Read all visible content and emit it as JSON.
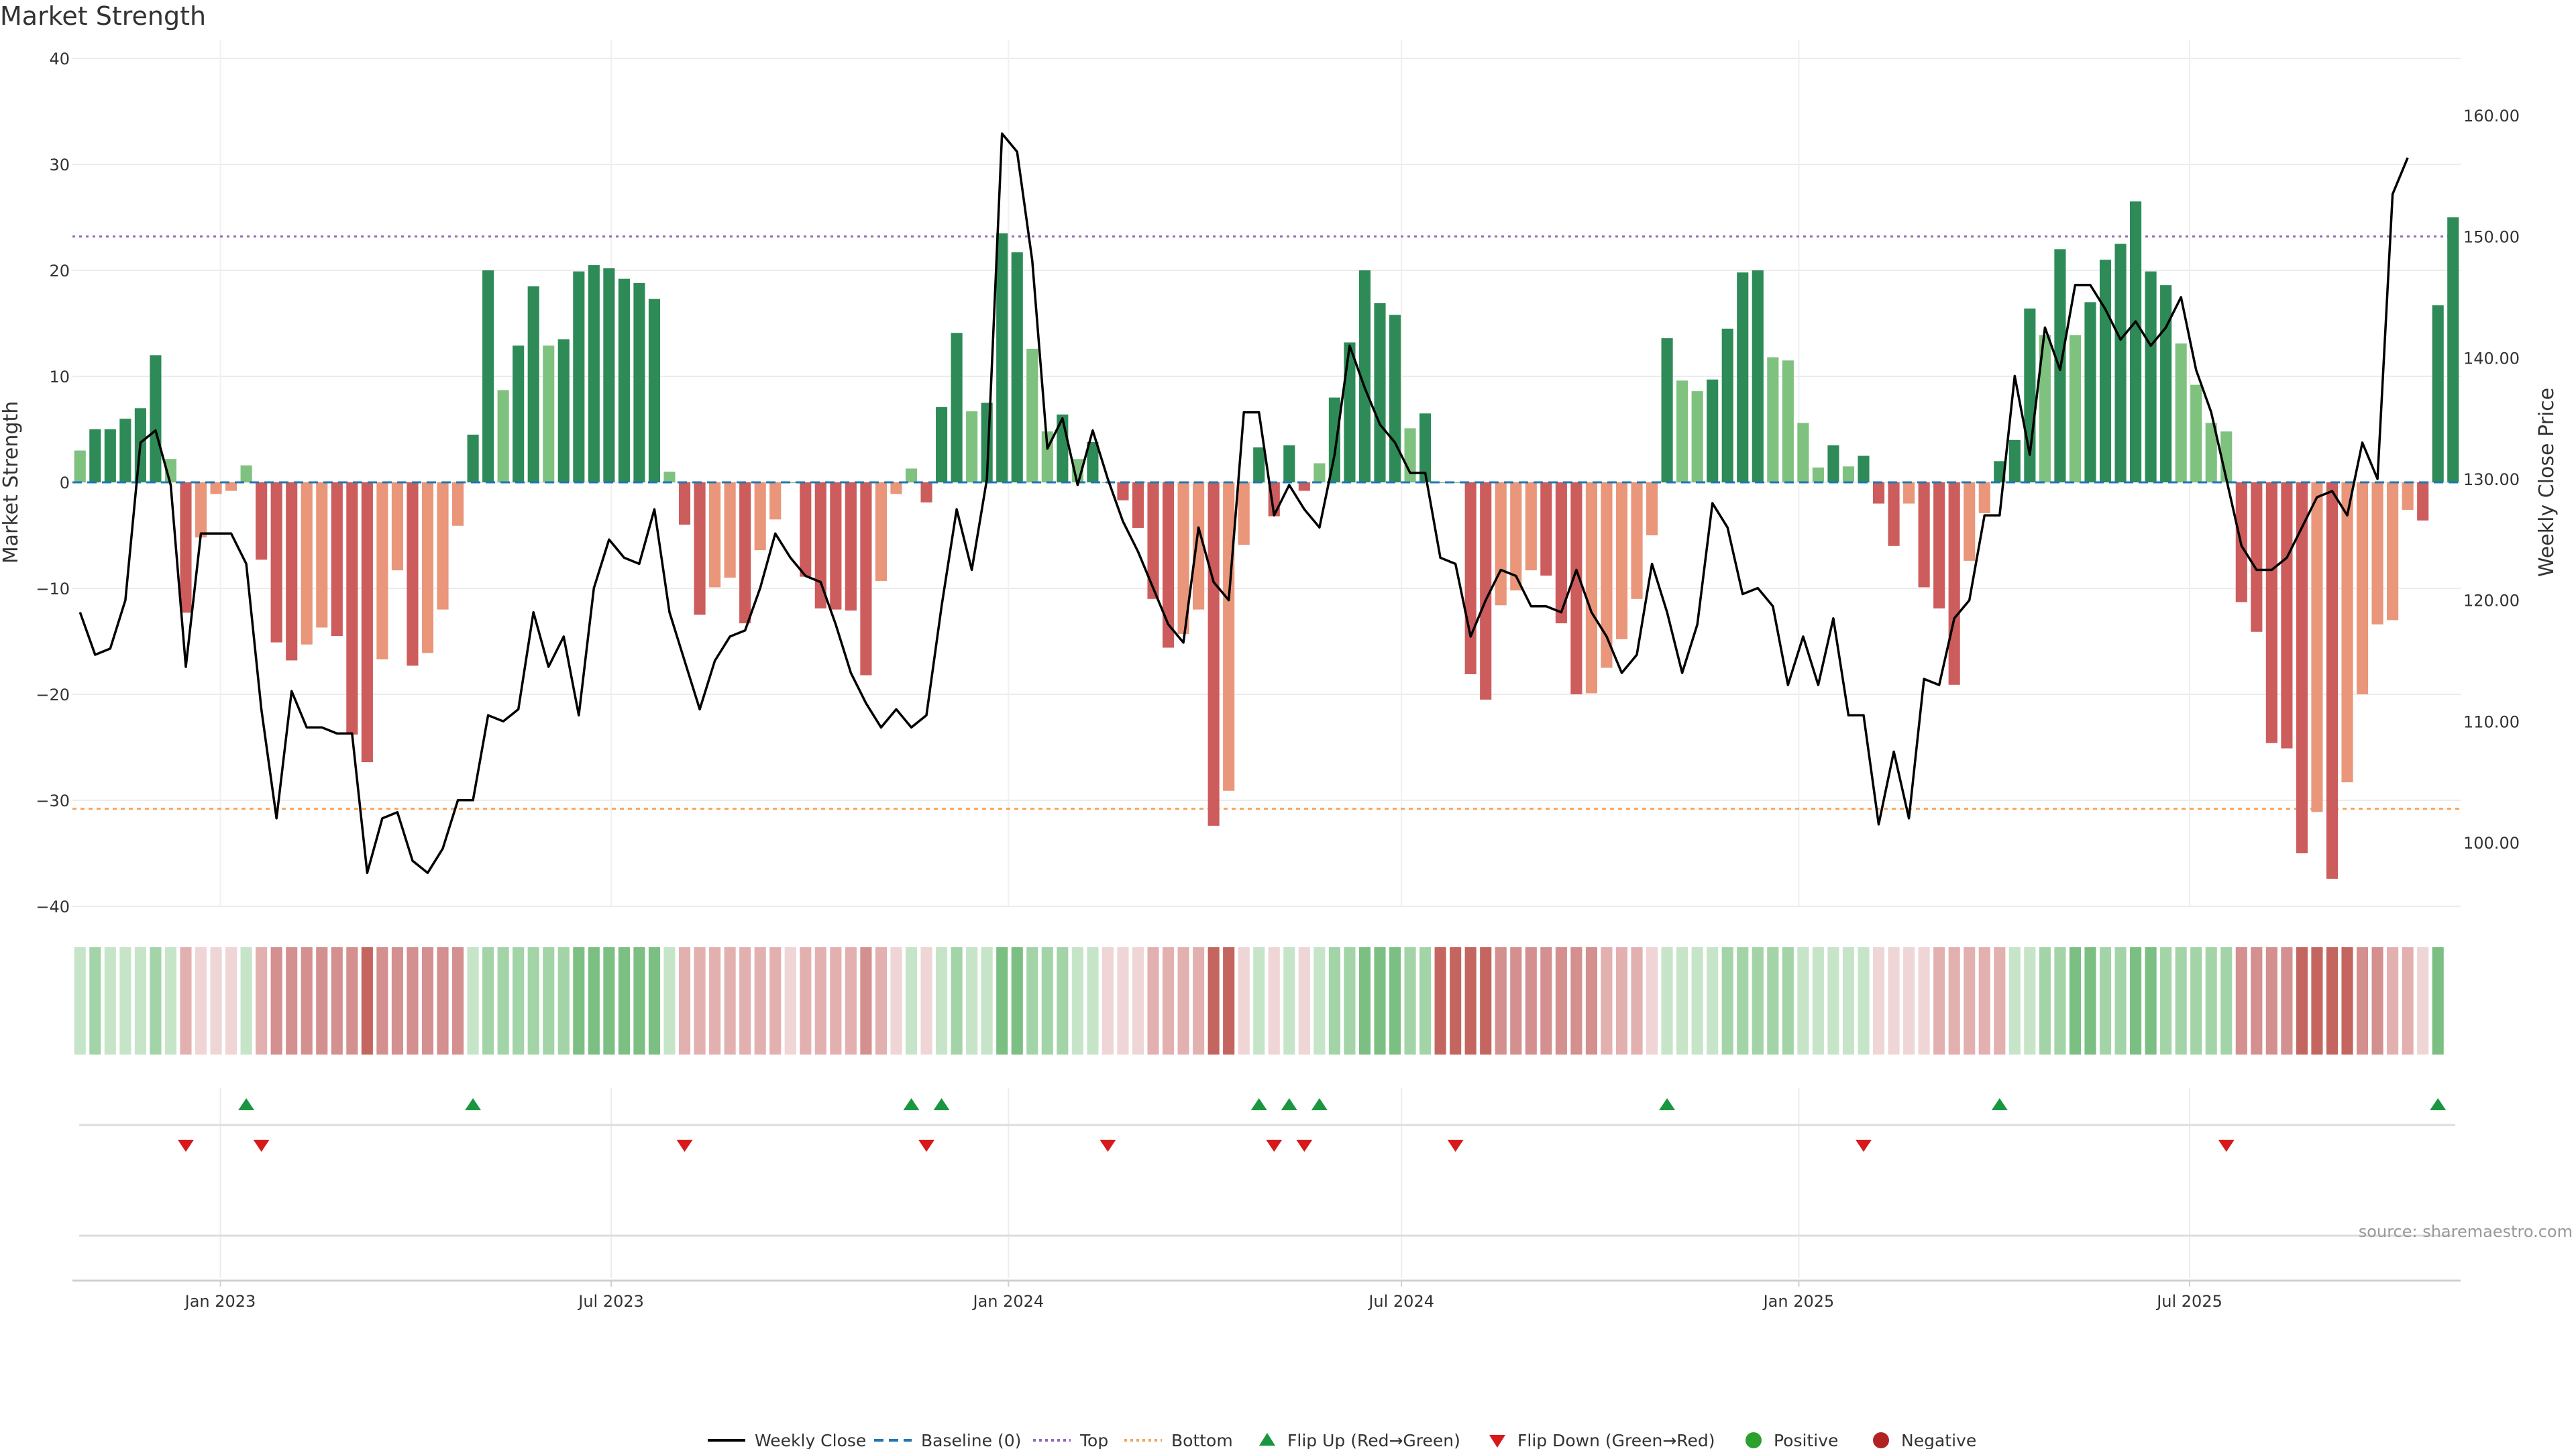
{
  "title": "Market Strength",
  "source": "source: sharemaestro.com",
  "colors": {
    "strong_pos": "#2e8b57",
    "weak_pos": "#7fc17f",
    "strong_neg": "#cd5c5c",
    "weak_neg": "#e9967a",
    "neutral": "#c2c2c2",
    "price": "#000000",
    "baseline": "#1f77b4",
    "top": "#9467bd",
    "bottom": "#f4a460",
    "flip_up": "#1a9641",
    "flip_down": "#d7191c",
    "positive": "#2ca02c",
    "negative": "#b22222"
  },
  "chart_data": {
    "type": "bar",
    "title": "Market Strength",
    "ylabel": "Market Strength",
    "y2label": "Weekly Close Price",
    "ylim": [
      -42,
      40
    ],
    "y2lim": [
      93.3,
      162.9
    ],
    "yticks": [
      40,
      30,
      20,
      10,
      0,
      -10,
      -20,
      -30,
      -40
    ],
    "y2ticks": [
      "160.00",
      "150.00",
      "140.00",
      "130.00",
      "120.00",
      "110.00",
      "100.00"
    ],
    "xticks": [
      "Jan 2023",
      "Jul 2023",
      "Jan 2024",
      "Jul 2024",
      "Jan 2025",
      "Jul 2025"
    ],
    "start_date": "2022-10-28",
    "top_level": 23.2,
    "bottom_level": -30.8,
    "bars": [
      3,
      5,
      5,
      6,
      7,
      12,
      2.2,
      -12.3,
      -5.2,
      -1.1,
      -0.8,
      1.6,
      -7.3,
      -15.1,
      -16.8,
      -15.3,
      -13.7,
      -14.5,
      -23.8,
      -26.4,
      -16.7,
      -8.3,
      -17.3,
      -16.1,
      -12.0,
      -4.1,
      4.5,
      20,
      8.7,
      12.9,
      18.5,
      12.9,
      13.5,
      19.9,
      20.5,
      20.2,
      19.2,
      18.8,
      17.3,
      1.0,
      -4.0,
      -12.5,
      -9.9,
      -9.0,
      -13.3,
      -6.4,
      -3.5,
      0,
      -8.9,
      -11.9,
      -12.0,
      -12.1,
      -18.2,
      -9.3,
      -1.1,
      1.3,
      -1.9,
      7.1,
      14.1,
      6.7,
      7.5,
      23.5,
      21.7,
      12.6,
      4.8,
      6.4,
      2.2,
      3.8,
      0,
      -1.7,
      -4.3,
      -11.0,
      -15.6,
      -14.3,
      -12.0,
      -32.4,
      -29.1,
      -5.9,
      3.3,
      -3.2,
      3.5,
      -0.8,
      1.8,
      8.0,
      13.2,
      20,
      16.9,
      15.8,
      5.1,
      6.5,
      0,
      0,
      -18.1,
      -20.5,
      -11.6,
      -10.2,
      -8.3,
      -8.8,
      -13.3,
      -20.0,
      -19.9,
      -17.5,
      -14.8,
      -11.0,
      -5.0,
      13.6,
      9.6,
      8.6,
      9.7,
      14.5,
      19.8,
      20.0,
      11.8,
      11.5,
      5.6,
      1.4,
      3.5,
      1.5,
      2.5,
      -2.0,
      -6.0,
      -2.0,
      -9.9,
      -11.9,
      -19.1,
      -7.4,
      -2.9,
      2.0,
      4.0,
      16.4,
      13.9,
      22.0,
      13.9,
      17.0,
      21.0,
      22.5,
      26.5,
      19.9,
      18.6,
      13.1,
      9.2,
      5.6,
      4.8,
      -11.3,
      -14.1,
      -24.6,
      -25.1,
      -35.0,
      -31.1,
      -37.4,
      -28.3,
      -20.0,
      -13.4,
      -13.0,
      -2.6,
      -3.6,
      16.7,
      25
    ],
    "series": [
      {
        "name": "Weekly Close",
        "values": [
          119,
          115.5,
          116,
          120,
          133,
          134,
          129.5,
          114.5,
          125.5,
          125.5,
          125.5,
          123,
          111,
          102,
          112.5,
          109.5,
          109.5,
          109,
          109,
          97.5,
          102,
          102.5,
          98.5,
          97.5,
          99.5,
          103.5,
          103.5,
          110.5,
          110,
          111,
          119,
          114.5,
          117,
          110.5,
          121,
          125,
          123.5,
          123,
          127.5,
          119,
          115,
          111,
          115,
          117,
          117.5,
          121,
          125.5,
          123.5,
          122,
          121.5,
          118,
          114,
          111.5,
          109.5,
          111,
          109.5,
          110.5,
          119.5,
          127.5,
          122.5,
          130,
          158.5,
          157,
          148,
          132.5,
          135,
          129.5,
          134,
          130,
          126.5,
          124,
          121,
          118,
          116.5,
          126,
          121.5,
          120,
          135.5,
          135.5,
          127,
          129.5,
          127.5,
          126,
          132,
          141,
          137.5,
          134.5,
          133,
          130.5,
          130.5,
          123.5,
          123,
          117,
          120,
          122.5,
          122,
          119.5,
          119.5,
          119,
          122.5,
          119,
          117,
          114,
          115.5,
          123,
          119,
          114,
          118,
          128,
          126,
          120.5,
          121,
          119.5,
          113,
          117,
          113,
          118.5,
          110.5,
          110.5,
          101.5,
          107.5,
          102,
          113.5,
          113,
          118.5,
          120,
          127,
          127,
          138.5,
          132,
          142.5,
          139,
          146,
          146,
          144,
          141.5,
          143,
          141,
          142.5,
          145,
          139,
          135.5,
          130,
          124.5,
          122.5,
          122.5,
          123.5,
          126,
          128.5,
          129,
          127,
          133,
          130,
          153.5,
          156.5
        ]
      }
    ],
    "ribbon": [
      1,
      2,
      1,
      1,
      1,
      2,
      1,
      -2,
      -1,
      -1,
      -1,
      1,
      -2,
      -3,
      -3,
      -3,
      -3,
      -3,
      -3,
      -4,
      -3,
      -3,
      -3,
      -3,
      -3,
      -3,
      1,
      2,
      2,
      2,
      2,
      2,
      2,
      3,
      3,
      3,
      3,
      3,
      3,
      1,
      -2,
      -2,
      -2,
      -2,
      -2,
      -2,
      -2,
      -1,
      -2,
      -2,
      -2,
      -2,
      -3,
      -2,
      -1,
      1,
      -1,
      1,
      2,
      1,
      1,
      3,
      3,
      2,
      2,
      2,
      1,
      1,
      -1,
      -1,
      -1,
      -2,
      -2,
      -2,
      -2,
      -4,
      -4,
      -1,
      1,
      -1,
      1,
      -1,
      1,
      2,
      2,
      3,
      3,
      3,
      2,
      2,
      -4,
      -4,
      -4,
      -4,
      -3,
      -3,
      -3,
      -3,
      -3,
      -3,
      -3,
      -2,
      -2,
      -2,
      -1,
      1,
      1,
      1,
      1,
      2,
      2,
      2,
      2,
      2,
      1,
      1,
      1,
      1,
      1,
      -1,
      -1,
      -1,
      -1,
      -2,
      -2,
      -2,
      -2,
      -2,
      1,
      1,
      2,
      2,
      3,
      3,
      2,
      2,
      3,
      3,
      2,
      2,
      2,
      2,
      2,
      -3,
      -3,
      -3,
      -3,
      -4,
      -4,
      -4,
      -4,
      -3,
      -3,
      -2,
      -2,
      -1,
      3
    ],
    "flip_up": [
      11,
      26,
      55,
      57,
      78,
      80,
      82,
      105,
      127,
      156
    ],
    "flip_down": [
      7,
      12,
      40,
      56,
      68,
      79,
      81,
      91,
      118,
      142
    ],
    "legend": [
      "Weekly Close",
      "Baseline (0)",
      "Top",
      "Bottom",
      "Flip Up (Red→Green)",
      "Flip Down (Green→Red)",
      "Positive",
      "Negative"
    ]
  }
}
